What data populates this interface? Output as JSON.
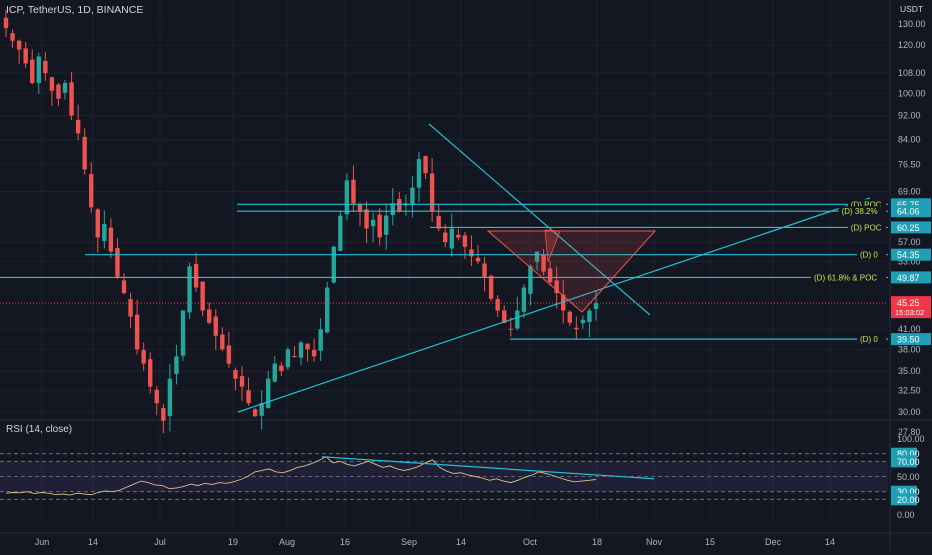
{
  "header": {
    "symbol_line": "ICP, TetherUS, 1D, BINANCE"
  },
  "rsi_label": "RSI (14, close)",
  "colors": {
    "background": "#131722",
    "grid": "#1e222d",
    "up": "#26a69a",
    "down": "#ef5350",
    "trendline": "#22c0d6",
    "rsi_line": "#d8c28a",
    "rsi_band": "#7e57c2",
    "label_bg": "#1e9fb5",
    "last_price_bg": "#f23645",
    "poc_text": "#c8e64b"
  },
  "chart_data": {
    "type": "candlestick",
    "title": "ICP, TetherUS, 1D, BINANCE",
    "price_axis": {
      "unit": "USDT",
      "scale": "log",
      "ticks": [
        130,
        120,
        108,
        100,
        92,
        84,
        76.5,
        69,
        57,
        53,
        41,
        38,
        35,
        32.5,
        30,
        27.8
      ]
    },
    "time_axis": {
      "ticks": [
        "Jun",
        "14",
        "Jul",
        "19",
        "Aug",
        "16",
        "Sep",
        "14",
        "Oct",
        "18",
        "Nov",
        "15",
        "Dec",
        "14"
      ]
    },
    "last_price": {
      "value": "45.25",
      "countdown": "15:03:02"
    },
    "level_labels": [
      {
        "tag": "(D) POC",
        "value": "65.75",
        "price": 65.75
      },
      {
        "tag": "(D) 38.2%",
        "value": "64.06",
        "price": 64.06
      },
      {
        "tag": "(D) POC",
        "value": "60.25",
        "price": 60.25
      },
      {
        "tag": "(D) 0",
        "value": "54.35",
        "price": 54.35
      },
      {
        "tag": "(D) 61.8% & POC",
        "value": "49.87",
        "price": 49.87
      },
      {
        "tag": "(D) 0",
        "value": "39.50",
        "price": 39.5
      }
    ],
    "series": [
      {
        "name": "ICP/USDT",
        "close_path": [
          128,
          122,
          118,
          112,
          104,
          115,
          108,
          101,
          98,
          104,
          92,
          86,
          75,
          65,
          58,
          61,
          55,
          50,
          47,
          43,
          38,
          36,
          33,
          31,
          29,
          34,
          37,
          44,
          52,
          48,
          44,
          42,
          40,
          38,
          36,
          34,
          33,
          31,
          29.5,
          31,
          34,
          36,
          35,
          38,
          37,
          39,
          38,
          37,
          41,
          48,
          56,
          63,
          72,
          66,
          64,
          60,
          62,
          58,
          63,
          66,
          64,
          66,
          70,
          78,
          74,
          64,
          60,
          57,
          60,
          58,
          56,
          54,
          53,
          50,
          46,
          44,
          42,
          41,
          44,
          48,
          52,
          55,
          51,
          49,
          47,
          44,
          42,
          41,
          42.5,
          44,
          45.25
        ]
      }
    ],
    "rsi": {
      "period": 14,
      "levels": [
        80,
        70,
        50,
        30,
        20
      ],
      "axis_ticks": [
        100,
        80,
        70,
        50,
        30,
        20,
        0
      ],
      "values": [
        28,
        29,
        28.5,
        30,
        27.5,
        29,
        28,
        26,
        27,
        25.5,
        28,
        27,
        26,
        29,
        31,
        30,
        32,
        36,
        40,
        44,
        42,
        39,
        38,
        34,
        35,
        37,
        40,
        38,
        41,
        39.5,
        42,
        41,
        43,
        46,
        50,
        56,
        58,
        60,
        56,
        55,
        58,
        62,
        64,
        67,
        71,
        76,
        68,
        70,
        66,
        64,
        67,
        70,
        66,
        62,
        64,
        60,
        58,
        60,
        63,
        68,
        72,
        62,
        57,
        54,
        55,
        52,
        50,
        48,
        45,
        47,
        44,
        42,
        45,
        49,
        52,
        56,
        54,
        51,
        48,
        45,
        43,
        44,
        45,
        46
      ]
    }
  }
}
